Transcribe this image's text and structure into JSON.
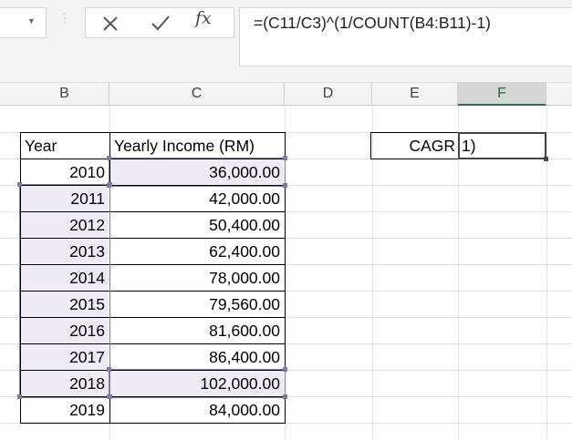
{
  "formula_bar": {
    "formula": "=(C11/C3)^(1/COUNT(B4:B11)-1)",
    "fx_label": "fx"
  },
  "columns": [
    "B",
    "C",
    "D",
    "E",
    "F"
  ],
  "table": {
    "header_year": "Year",
    "header_income": "Yearly Income (RM)",
    "rows": [
      {
        "year": "2010",
        "income": "36,000.00"
      },
      {
        "year": "2011",
        "income": "42,000.00"
      },
      {
        "year": "2012",
        "income": "50,400.00"
      },
      {
        "year": "2013",
        "income": "62,400.00"
      },
      {
        "year": "2014",
        "income": "78,000.00"
      },
      {
        "year": "2015",
        "income": "79,560.00"
      },
      {
        "year": "2016",
        "income": "81,600.00"
      },
      {
        "year": "2017",
        "income": "86,400.00"
      },
      {
        "year": "2018",
        "income": "102,000.00"
      },
      {
        "year": "2019",
        "income": "84,000.00"
      }
    ]
  },
  "cagr": {
    "label": "CAGR",
    "editing_value": "1)"
  },
  "colors": {
    "accent": "#217346",
    "range_highlight": "#7f7aa0"
  }
}
